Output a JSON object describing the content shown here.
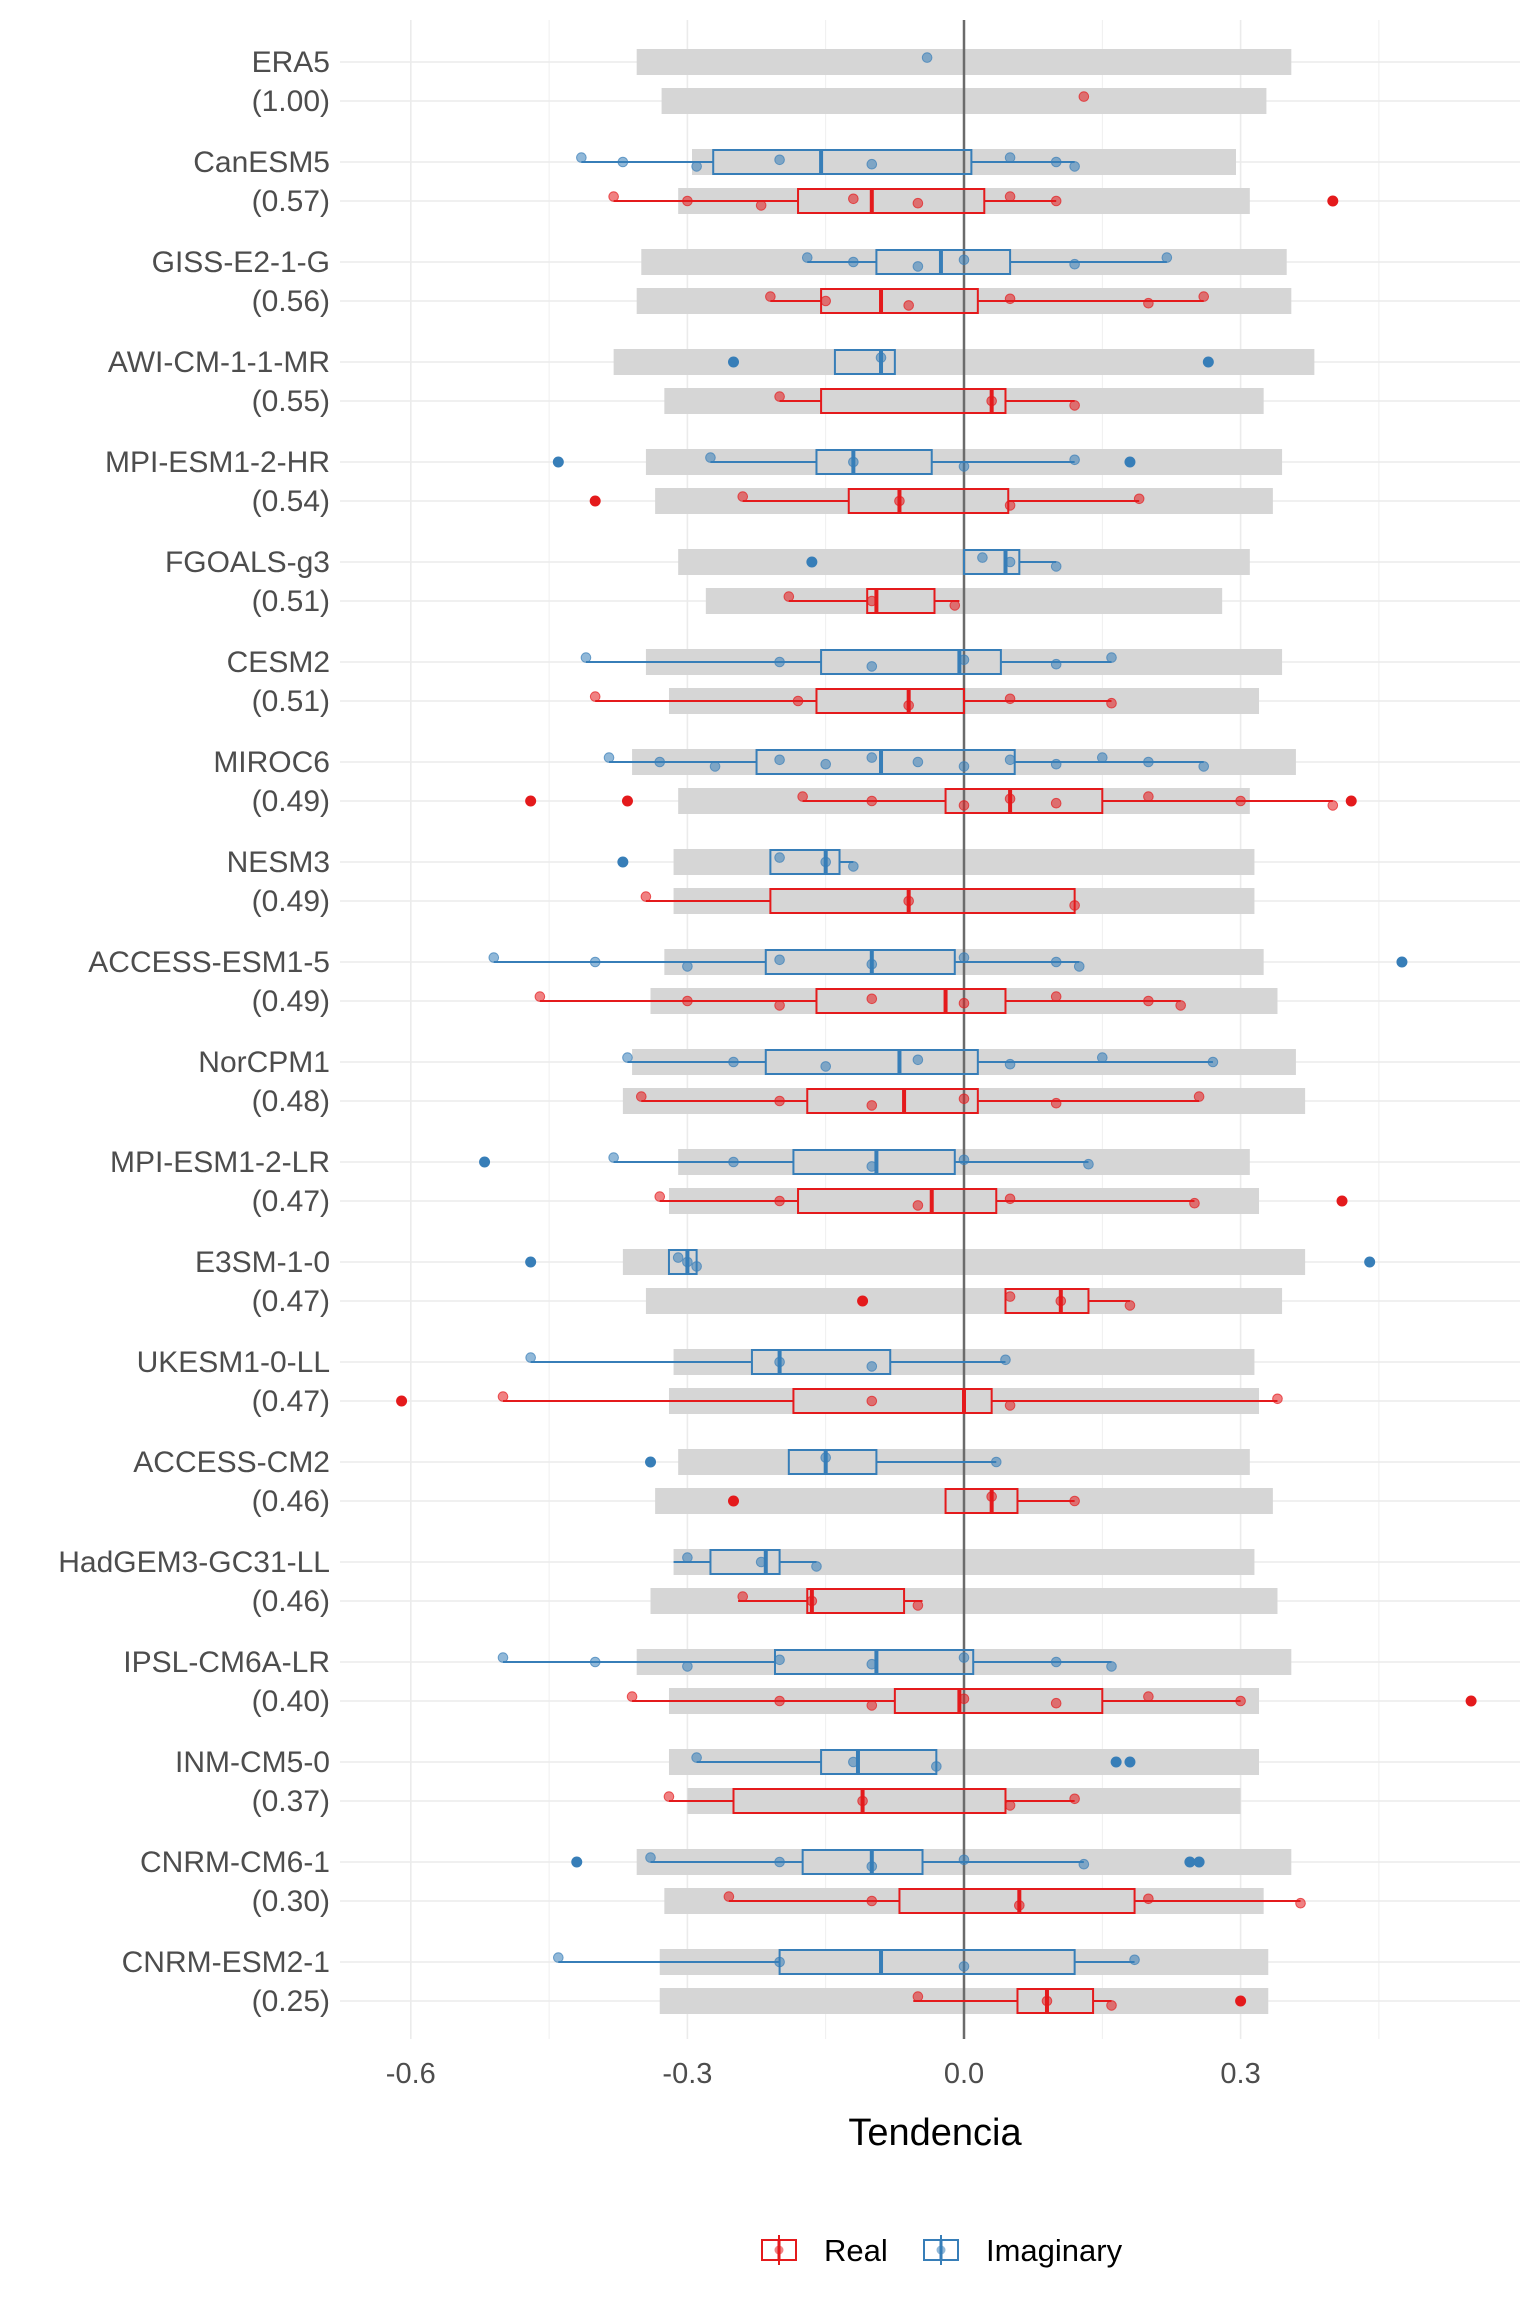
{
  "chart_data": {
    "type": "boxplot",
    "xlabel": "Tendencia",
    "ylabel": "",
    "xlim": [
      -0.7,
      0.59
    ],
    "x_ticks": [
      "-0.6",
      "-0.3",
      "0.0",
      "0.3"
    ],
    "x_tick_values": [
      -0.6,
      -0.3,
      0.0,
      0.3
    ],
    "grid": true,
    "zero_line": true,
    "legend_position": "bottom",
    "legend": [
      {
        "key": "real",
        "label": "Real",
        "color": "#E41A1C"
      },
      {
        "key": "imag",
        "label": "Imaginary",
        "color": "#377EB8"
      }
    ],
    "models": [
      {
        "name": "ERA5",
        "corr": "(1.00)",
        "imag": {
          "range": [
            -0.355,
            0.355
          ],
          "points": [
            -0.04
          ]
        },
        "real": {
          "range": [
            -0.328,
            0.328
          ],
          "points": [
            0.13
          ]
        }
      },
      {
        "name": "CanESM5",
        "corr": "(0.57)",
        "imag": {
          "range": [
            -0.295,
            0.295
          ],
          "box": [
            -0.415,
            -0.272,
            -0.155,
            0.008,
            0.12
          ],
          "points": [
            -0.415,
            -0.37,
            -0.29,
            -0.2,
            -0.1,
            0.05,
            0.1,
            0.12
          ],
          "outliers": []
        },
        "real": {
          "range": [
            -0.31,
            0.31
          ],
          "box": [
            -0.38,
            -0.18,
            -0.1,
            0.022,
            0.1
          ],
          "points": [
            -0.38,
            -0.3,
            -0.22,
            -0.12,
            -0.05,
            0.05,
            0.1
          ],
          "outliers": [
            0.4
          ]
        }
      },
      {
        "name": "GISS-E2-1-G",
        "corr": "(0.56)",
        "imag": {
          "range": [
            -0.35,
            0.35
          ],
          "box": [
            -0.17,
            -0.095,
            -0.025,
            0.05,
            0.22
          ],
          "points": [
            -0.17,
            -0.12,
            -0.05,
            0.0,
            0.12,
            0.22
          ],
          "outliers": []
        },
        "real": {
          "range": [
            -0.355,
            0.355
          ],
          "box": [
            -0.21,
            -0.155,
            -0.09,
            0.015,
            0.26
          ],
          "points": [
            -0.21,
            -0.15,
            -0.06,
            0.05,
            0.2,
            0.26
          ],
          "outliers": []
        }
      },
      {
        "name": "AWI-CM-1-1-MR",
        "corr": "(0.55)",
        "imag": {
          "range": [
            -0.38,
            0.38
          ],
          "box": [
            -0.14,
            -0.14,
            -0.09,
            -0.075,
            -0.075
          ],
          "points": [
            -0.09
          ],
          "outliers": [
            -0.25,
            0.265
          ]
        },
        "real": {
          "range": [
            -0.325,
            0.325
          ],
          "box": [
            -0.2,
            -0.155,
            0.03,
            0.045,
            0.12
          ],
          "points": [
            -0.2,
            0.03,
            0.12
          ],
          "outliers": []
        }
      },
      {
        "name": "MPI-ESM1-2-HR",
        "corr": "(0.54)",
        "imag": {
          "range": [
            -0.345,
            0.345
          ],
          "box": [
            -0.275,
            -0.16,
            -0.12,
            -0.035,
            0.12
          ],
          "points": [
            -0.275,
            -0.12,
            0.0,
            0.12
          ],
          "outliers": [
            -0.44,
            0.18
          ]
        },
        "real": {
          "range": [
            -0.335,
            0.335
          ],
          "box": [
            -0.24,
            -0.125,
            -0.07,
            0.048,
            0.19
          ],
          "points": [
            -0.24,
            -0.07,
            0.05,
            0.19
          ],
          "outliers": [
            -0.4
          ]
        }
      },
      {
        "name": "FGOALS-g3",
        "corr": "(0.51)",
        "imag": {
          "range": [
            -0.31,
            0.31
          ],
          "box": [
            0.0,
            0.0,
            0.045,
            0.06,
            0.1
          ],
          "points": [
            0.02,
            0.05,
            0.1
          ],
          "outliers": [
            -0.165
          ]
        },
        "real": {
          "range": [
            -0.28,
            0.28
          ],
          "box": [
            -0.19,
            -0.105,
            -0.095,
            -0.032,
            -0.005
          ],
          "points": [
            -0.19,
            -0.1,
            -0.01
          ],
          "outliers": []
        }
      },
      {
        "name": "CESM2",
        "corr": "(0.51)",
        "imag": {
          "range": [
            -0.345,
            0.345
          ],
          "box": [
            -0.41,
            -0.155,
            -0.005,
            0.04,
            0.16
          ],
          "points": [
            -0.41,
            -0.2,
            -0.1,
            0.0,
            0.1,
            0.16
          ],
          "outliers": []
        },
        "real": {
          "range": [
            -0.32,
            0.32
          ],
          "box": [
            -0.4,
            -0.16,
            -0.06,
            0.0,
            0.16
          ],
          "points": [
            -0.4,
            -0.18,
            -0.06,
            0.05,
            0.16
          ],
          "outliers": []
        }
      },
      {
        "name": "MIROC6",
        "corr": "(0.49)",
        "imag": {
          "range": [
            -0.36,
            0.36
          ],
          "box": [
            -0.385,
            -0.225,
            -0.09,
            0.055,
            0.26
          ],
          "points": [
            -0.385,
            -0.33,
            -0.27,
            -0.2,
            -0.15,
            -0.1,
            -0.05,
            0.0,
            0.05,
            0.1,
            0.15,
            0.2,
            0.26
          ],
          "outliers": []
        },
        "real": {
          "range": [
            -0.31,
            0.31
          ],
          "box": [
            -0.175,
            -0.02,
            0.05,
            0.15,
            0.4
          ],
          "points": [
            -0.175,
            -0.1,
            0.0,
            0.05,
            0.1,
            0.2,
            0.3,
            0.4
          ],
          "outliers": [
            -0.47,
            -0.365,
            0.42
          ]
        }
      },
      {
        "name": "NESM3",
        "corr": "(0.49)",
        "imag": {
          "range": [
            -0.315,
            0.315
          ],
          "box": [
            -0.21,
            -0.21,
            -0.15,
            -0.135,
            -0.12
          ],
          "points": [
            -0.2,
            -0.15,
            -0.12
          ],
          "outliers": [
            -0.37
          ]
        },
        "real": {
          "range": [
            -0.315,
            0.315
          ],
          "box": [
            -0.345,
            -0.21,
            -0.06,
            0.12,
            0.12
          ],
          "points": [
            -0.345,
            -0.06,
            0.12
          ],
          "outliers": []
        }
      },
      {
        "name": "ACCESS-ESM1-5",
        "corr": "(0.49)",
        "imag": {
          "range": [
            -0.325,
            0.325
          ],
          "box": [
            -0.51,
            -0.215,
            -0.1,
            -0.01,
            0.125
          ],
          "points": [
            -0.51,
            -0.4,
            -0.3,
            -0.2,
            -0.1,
            0.0,
            0.1,
            0.125
          ],
          "outliers": [
            0.475
          ]
        },
        "real": {
          "range": [
            -0.34,
            0.34
          ],
          "box": [
            -0.46,
            -0.16,
            -0.02,
            0.045,
            0.235
          ],
          "points": [
            -0.46,
            -0.3,
            -0.2,
            -0.1,
            0.0,
            0.1,
            0.2,
            0.235
          ],
          "outliers": []
        }
      },
      {
        "name": "NorCPM1",
        "corr": "(0.48)",
        "imag": {
          "range": [
            -0.36,
            0.36
          ],
          "box": [
            -0.365,
            -0.215,
            -0.07,
            0.015,
            0.27
          ],
          "points": [
            -0.365,
            -0.25,
            -0.15,
            -0.05,
            0.05,
            0.15,
            0.27
          ],
          "outliers": []
        },
        "real": {
          "range": [
            -0.37,
            0.37
          ],
          "box": [
            -0.35,
            -0.17,
            -0.065,
            0.015,
            0.255
          ],
          "points": [
            -0.35,
            -0.2,
            -0.1,
            0.0,
            0.1,
            0.255
          ],
          "outliers": []
        }
      },
      {
        "name": "MPI-ESM1-2-LR",
        "corr": "(0.47)",
        "imag": {
          "range": [
            -0.31,
            0.31
          ],
          "box": [
            -0.38,
            -0.185,
            -0.095,
            -0.01,
            0.135
          ],
          "points": [
            -0.38,
            -0.25,
            -0.1,
            0.0,
            0.135
          ],
          "outliers": [
            -0.52
          ]
        },
        "real": {
          "range": [
            -0.32,
            0.32
          ],
          "box": [
            -0.33,
            -0.18,
            -0.035,
            0.035,
            0.25
          ],
          "points": [
            -0.33,
            -0.2,
            -0.05,
            0.05,
            0.25
          ],
          "outliers": [
            0.41
          ]
        }
      },
      {
        "name": "E3SM-1-0",
        "corr": "(0.47)",
        "imag": {
          "range": [
            -0.37,
            0.37
          ],
          "box": [
            -0.32,
            -0.32,
            -0.3,
            -0.29,
            -0.29
          ],
          "points": [
            -0.31,
            -0.3,
            -0.29
          ],
          "outliers": [
            -0.47,
            0.44
          ]
        },
        "real": {
          "range": [
            -0.345,
            0.345
          ],
          "box": [
            0.045,
            0.045,
            0.105,
            0.135,
            0.18
          ],
          "points": [
            0.05,
            0.105,
            0.18
          ],
          "outliers": [
            -0.11
          ]
        }
      },
      {
        "name": "UKESM1-0-LL",
        "corr": "(0.47)",
        "imag": {
          "range": [
            -0.315,
            0.315
          ],
          "box": [
            -0.47,
            -0.23,
            -0.2,
            -0.08,
            0.045
          ],
          "points": [
            -0.47,
            -0.2,
            -0.1,
            0.045
          ],
          "outliers": []
        },
        "real": {
          "range": [
            -0.32,
            0.32
          ],
          "box": [
            -0.5,
            -0.185,
            0.0,
            0.03,
            0.34
          ],
          "points": [
            -0.5,
            -0.1,
            0.05,
            0.34
          ],
          "outliers": [
            -0.61
          ]
        }
      },
      {
        "name": "ACCESS-CM2",
        "corr": "(0.46)",
        "imag": {
          "range": [
            -0.31,
            0.31
          ],
          "box": [
            -0.19,
            -0.19,
            -0.15,
            -0.095,
            0.035
          ],
          "points": [
            -0.15,
            0.035
          ],
          "outliers": [
            -0.34
          ]
        },
        "real": {
          "range": [
            -0.335,
            0.335
          ],
          "box": [
            -0.02,
            -0.02,
            0.03,
            0.058,
            0.12
          ],
          "points": [
            0.03,
            0.12
          ],
          "outliers": [
            -0.25
          ]
        }
      },
      {
        "name": "HadGEM3-GC31-LL",
        "corr": "(0.46)",
        "imag": {
          "range": [
            -0.315,
            0.315
          ],
          "box": [
            -0.315,
            -0.275,
            -0.215,
            -0.2,
            -0.16
          ],
          "points": [
            -0.3,
            -0.22,
            -0.16
          ],
          "outliers": []
        },
        "real": {
          "range": [
            -0.34,
            0.34
          ],
          "box": [
            -0.245,
            -0.17,
            -0.165,
            -0.065,
            -0.045
          ],
          "points": [
            -0.24,
            -0.165,
            -0.05
          ],
          "outliers": []
        }
      },
      {
        "name": "IPSL-CM6A-LR",
        "corr": "(0.40)",
        "imag": {
          "range": [
            -0.355,
            0.355
          ],
          "box": [
            -0.5,
            -0.205,
            -0.095,
            0.01,
            0.16
          ],
          "points": [
            -0.5,
            -0.4,
            -0.3,
            -0.2,
            -0.1,
            0.0,
            0.1,
            0.16
          ],
          "outliers": []
        },
        "real": {
          "range": [
            -0.32,
            0.32
          ],
          "box": [
            -0.36,
            -0.075,
            -0.005,
            0.15,
            0.3
          ],
          "points": [
            -0.36,
            -0.2,
            -0.1,
            0.0,
            0.1,
            0.2,
            0.3
          ],
          "outliers": [
            0.55
          ]
        }
      },
      {
        "name": "INM-CM5-0",
        "corr": "(0.37)",
        "imag": {
          "range": [
            -0.32,
            0.32
          ],
          "box": [
            -0.29,
            -0.155,
            -0.115,
            -0.03,
            -0.03
          ],
          "points": [
            -0.29,
            -0.12,
            -0.03
          ],
          "outliers": [
            0.165,
            0.18
          ]
        },
        "real": {
          "range": [
            -0.3,
            0.3
          ],
          "box": [
            -0.32,
            -0.25,
            -0.11,
            0.045,
            0.12
          ],
          "points": [
            -0.32,
            -0.11,
            0.05,
            0.12
          ],
          "outliers": []
        }
      },
      {
        "name": "CNRM-CM6-1",
        "corr": "(0.30)",
        "imag": {
          "range": [
            -0.355,
            0.355
          ],
          "box": [
            -0.34,
            -0.175,
            -0.1,
            -0.045,
            0.13
          ],
          "points": [
            -0.34,
            -0.2,
            -0.1,
            0.0,
            0.13
          ],
          "outliers": [
            -0.42,
            0.245,
            0.255
          ]
        },
        "real": {
          "range": [
            -0.325,
            0.325
          ],
          "box": [
            -0.255,
            -0.07,
            0.06,
            0.185,
            0.365
          ],
          "points": [
            -0.255,
            -0.1,
            0.06,
            0.2,
            0.365
          ],
          "outliers": []
        }
      },
      {
        "name": "CNRM-ESM2-1",
        "corr": "(0.25)",
        "imag": {
          "range": [
            -0.33,
            0.33
          ],
          "box": [
            -0.44,
            -0.2,
            -0.09,
            0.12,
            0.185
          ],
          "points": [
            -0.44,
            -0.2,
            0.0,
            0.185
          ],
          "outliers": []
        },
        "real": {
          "range": [
            -0.33,
            0.33
          ],
          "box": [
            -0.055,
            0.058,
            0.09,
            0.14,
            0.16
          ],
          "points": [
            -0.05,
            0.09,
            0.16
          ],
          "outliers": [
            0.3
          ]
        }
      }
    ]
  }
}
